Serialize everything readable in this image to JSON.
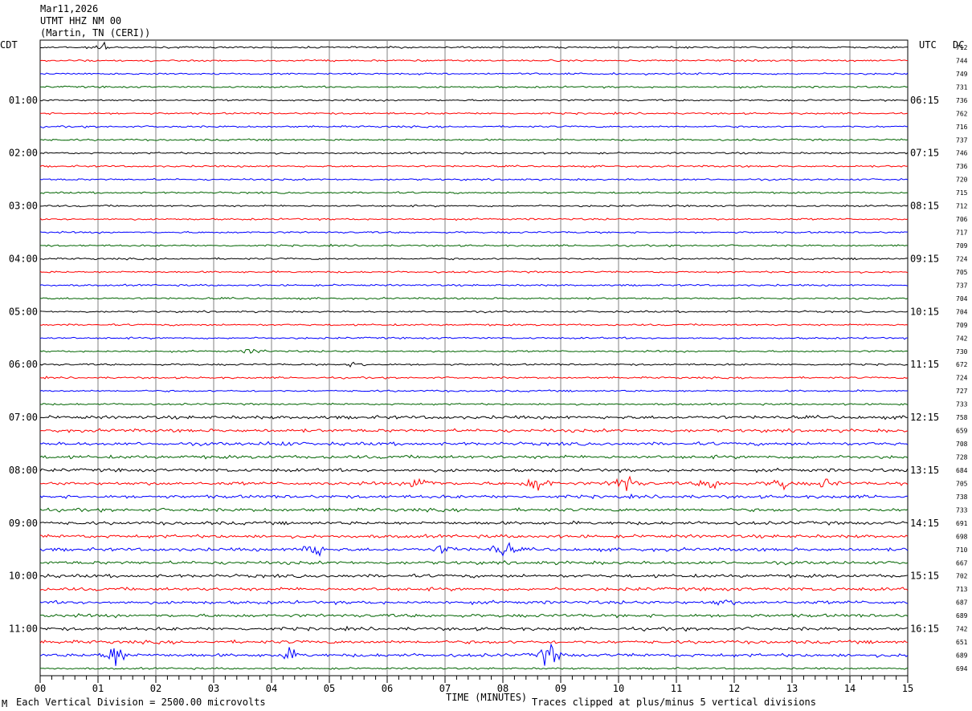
{
  "header": {
    "date": "Mar11,2026",
    "station": "UTMT HHZ NM 00",
    "location": "(Martin, TN (CERI))"
  },
  "left_tz_label": "CDT",
  "right_tz_label": "UTC",
  "dc_label": "DC",
  "footer": {
    "scale_note": "Each Vertical Division = 2500.00 microvolts",
    "clip_note": "Traces clipped at plus/minus 5 vertical divisions",
    "corner_mark": "M"
  },
  "chart_data": {
    "type": "line",
    "title": "",
    "xlabel": "TIME (MINUTES)",
    "xlim": [
      0,
      15
    ],
    "x_ticks": [
      "00",
      "01",
      "02",
      "03",
      "04",
      "05",
      "06",
      "07",
      "08",
      "09",
      "10",
      "11",
      "12",
      "13",
      "14",
      "15"
    ],
    "trace_colors": [
      "#000000",
      "#ff0000",
      "#0000ff",
      "#006400"
    ],
    "left_hour_labels": [
      "01:00",
      "02:00",
      "03:00",
      "04:00",
      "05:00",
      "06:00",
      "07:00",
      "08:00",
      "09:00",
      "10:00",
      "11:00"
    ],
    "right_hour_labels": [
      "06:15",
      "07:15",
      "08:15",
      "09:15",
      "10:15",
      "11:15",
      "12:15",
      "13:15",
      "14:15",
      "15:15",
      "16:15"
    ],
    "dc_offsets": [
      712,
      744,
      749,
      731,
      736,
      762,
      716,
      737,
      746,
      736,
      720,
      715,
      712,
      706,
      717,
      709,
      724,
      705,
      737,
      704,
      704,
      709,
      742,
      730,
      672,
      724,
      727,
      733,
      758,
      659,
      708,
      728,
      684,
      705,
      738,
      733,
      691,
      698,
      710,
      667,
      702,
      713,
      687,
      689,
      742,
      651,
      689,
      694
    ],
    "events": [
      {
        "trace": 0,
        "minute": 1.1,
        "amp": 1.2
      },
      {
        "trace": 23,
        "minute": 3.7,
        "amp": 0.8
      },
      {
        "trace": 24,
        "minute": 5.5,
        "amp": 0.8
      },
      {
        "trace": 30,
        "minute": 4.1,
        "amp": 0.8
      },
      {
        "trace": 33,
        "minute": 6.6,
        "amp": 3.2
      },
      {
        "trace": 33,
        "minute": 8.6,
        "amp": 3.0
      },
      {
        "trace": 33,
        "minute": 10.1,
        "amp": 3.6
      },
      {
        "trace": 33,
        "minute": 11.6,
        "amp": 2.0
      },
      {
        "trace": 33,
        "minute": 12.8,
        "amp": 2.0
      },
      {
        "trace": 33,
        "minute": 13.6,
        "amp": 1.6
      },
      {
        "trace": 38,
        "minute": 4.7,
        "amp": 3.2
      },
      {
        "trace": 38,
        "minute": 7.0,
        "amp": 1.4
      },
      {
        "trace": 38,
        "minute": 8.0,
        "amp": 2.6
      },
      {
        "trace": 42,
        "minute": 11.8,
        "amp": 1.0
      },
      {
        "trace": 46,
        "minute": 1.3,
        "amp": 4.5
      },
      {
        "trace": 46,
        "minute": 4.3,
        "amp": 1.8
      },
      {
        "trace": 46,
        "minute": 8.8,
        "amp": 3.6
      }
    ]
  }
}
